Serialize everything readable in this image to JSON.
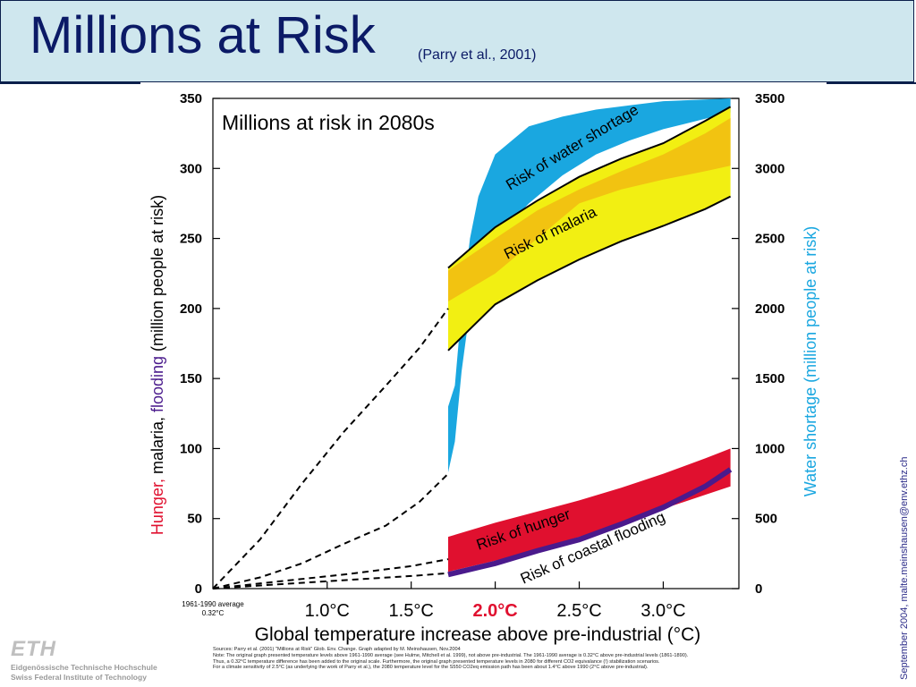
{
  "slide": {
    "title": "Millions at Risk",
    "citation": "(Parry et al., 2001)",
    "side_text": "September 2004, malte.meinshausen@env.ethz.ch",
    "institution_logo": "ETH",
    "institution_line1": "Eidgenössische Technische Hochschule",
    "institution_line2": "Swiss Federal Institute of Technology",
    "sources": [
      "Sources: Parry et al. (2001) \"Millions at Risk\" Glob. Env. Change. Graph adapted by M. Meinshausen, Nov.2004",
      "Note: The original graph presented temperature levels above 1961-1990 average (see Hulme, Mitchell et al. 1999), not above pre-industrial. The 1961-1990 average is 0.32°C above pre-industrial levels (1861-1890).",
      "Thus, a 0.32°C temperature difference has been added to the original scale. Furthermore, the original graph presented temperature levels in 2080 for different CO2 equivalance (!) stabilization scenarios.",
      "For a climate sensitivity of 2.5°C (as underlying the work of Parry et al.), the 2080 temperature level for the S550 CO2eq emission path has been about 1.4°C above 1990 (2°C above pre-industrial)."
    ]
  },
  "chart_data": {
    "type": "area",
    "title": "Millions at risk in 2080s",
    "xlabel": "Global temperature increase above pre-industrial (°C)",
    "ylabel_left_parts": [
      "Hunger,",
      " malaria,",
      " flooding",
      " (million people at risk)"
    ],
    "ylabel_right": "Water shortage (million people at risk)",
    "xlim": [
      0.32,
      3.45
    ],
    "ylim_left": [
      0,
      350
    ],
    "ylim_right": [
      0,
      3500
    ],
    "x_tick_values": [
      1.0,
      1.5,
      2.0,
      2.5,
      3.0
    ],
    "x_tick_labels": [
      "1.0°C",
      "1.5°C",
      "2.0°C",
      "2.5°C",
      "3.0°C"
    ],
    "x_highlight_label": "2.0°C",
    "x_origin_note": [
      "1961-1990 average",
      "0.32°C"
    ],
    "y_left_ticks": [
      0,
      50,
      100,
      150,
      200,
      250,
      300,
      350
    ],
    "y_right_ticks": [
      0,
      500,
      1000,
      1500,
      2000,
      2500,
      3000,
      3500
    ],
    "colors": {
      "water": "#1aa7e0",
      "malaria_outer": "#f2ef12",
      "malaria_inner": "#f2c311",
      "hunger": "#e0102f",
      "flooding": "#4a1a8c",
      "highlight": "#e0102f",
      "title_blue": "#0b1a66",
      "right_label": "#1aa7e0"
    },
    "series": [
      {
        "name": "Risk of water shortage",
        "axis": "right",
        "x": [
          1.72,
          1.76,
          1.8,
          1.85,
          1.9,
          2.0,
          2.2,
          2.4,
          2.6,
          2.8,
          3.0,
          3.2,
          3.4
        ],
        "lower": [
          830,
          1050,
          1550,
          2000,
          2250,
          2500,
          2750,
          2950,
          3100,
          3200,
          3280,
          3340,
          3400
        ],
        "upper": [
          1300,
          1450,
          2000,
          2500,
          2800,
          3100,
          3300,
          3370,
          3420,
          3450,
          3480,
          3490,
          3500
        ]
      },
      {
        "name": "Risk of malaria",
        "axis": "left",
        "x": [
          1.72,
          2.0,
          2.25,
          2.5,
          2.75,
          3.0,
          3.25,
          3.4
        ],
        "lower": [
          170,
          203,
          220,
          235,
          248,
          259,
          271,
          280
        ],
        "upper": [
          229,
          258,
          277,
          294,
          307,
          318,
          334,
          344
        ],
        "inner_lower": [
          205,
          225,
          250,
          275,
          285,
          292,
          298,
          302
        ],
        "inner_upper": [
          227,
          250,
          270,
          285,
          298,
          310,
          325,
          336
        ]
      },
      {
        "name": "Risk of hunger",
        "axis": "left",
        "x": [
          1.72,
          2.0,
          2.25,
          2.5,
          2.75,
          3.0,
          3.25,
          3.4
        ],
        "lower": [
          12,
          20,
          28,
          37,
          46,
          57,
          67,
          73
        ],
        "upper": [
          37,
          47,
          55,
          63,
          72,
          82,
          93,
          100
        ]
      },
      {
        "name": "Risk of coastal flooding",
        "axis": "left",
        "x": [
          1.72,
          2.0,
          2.25,
          2.5,
          2.75,
          3.0,
          3.25,
          3.4
        ],
        "values": [
          10,
          18,
          27,
          35,
          46,
          58,
          73,
          85
        ]
      }
    ],
    "dashed_extrapolations": [
      {
        "x": [
          0.32,
          0.6,
          0.85,
          1.1,
          1.35,
          1.55,
          1.72
        ],
        "y": [
          0,
          35,
          75,
          112,
          145,
          172,
          200
        ]
      },
      {
        "x": [
          0.32,
          0.6,
          0.85,
          1.1,
          1.35,
          1.55,
          1.72
        ],
        "y": [
          0,
          8,
          18,
          32,
          45,
          62,
          82
        ]
      },
      {
        "x": [
          0.32,
          0.7,
          1.1,
          1.5,
          1.72
        ],
        "y": [
          0,
          5,
          10,
          16,
          21
        ]
      },
      {
        "x": [
          0.32,
          0.7,
          1.1,
          1.5,
          1.72
        ],
        "y": [
          0,
          3,
          6,
          9,
          11
        ]
      }
    ]
  }
}
